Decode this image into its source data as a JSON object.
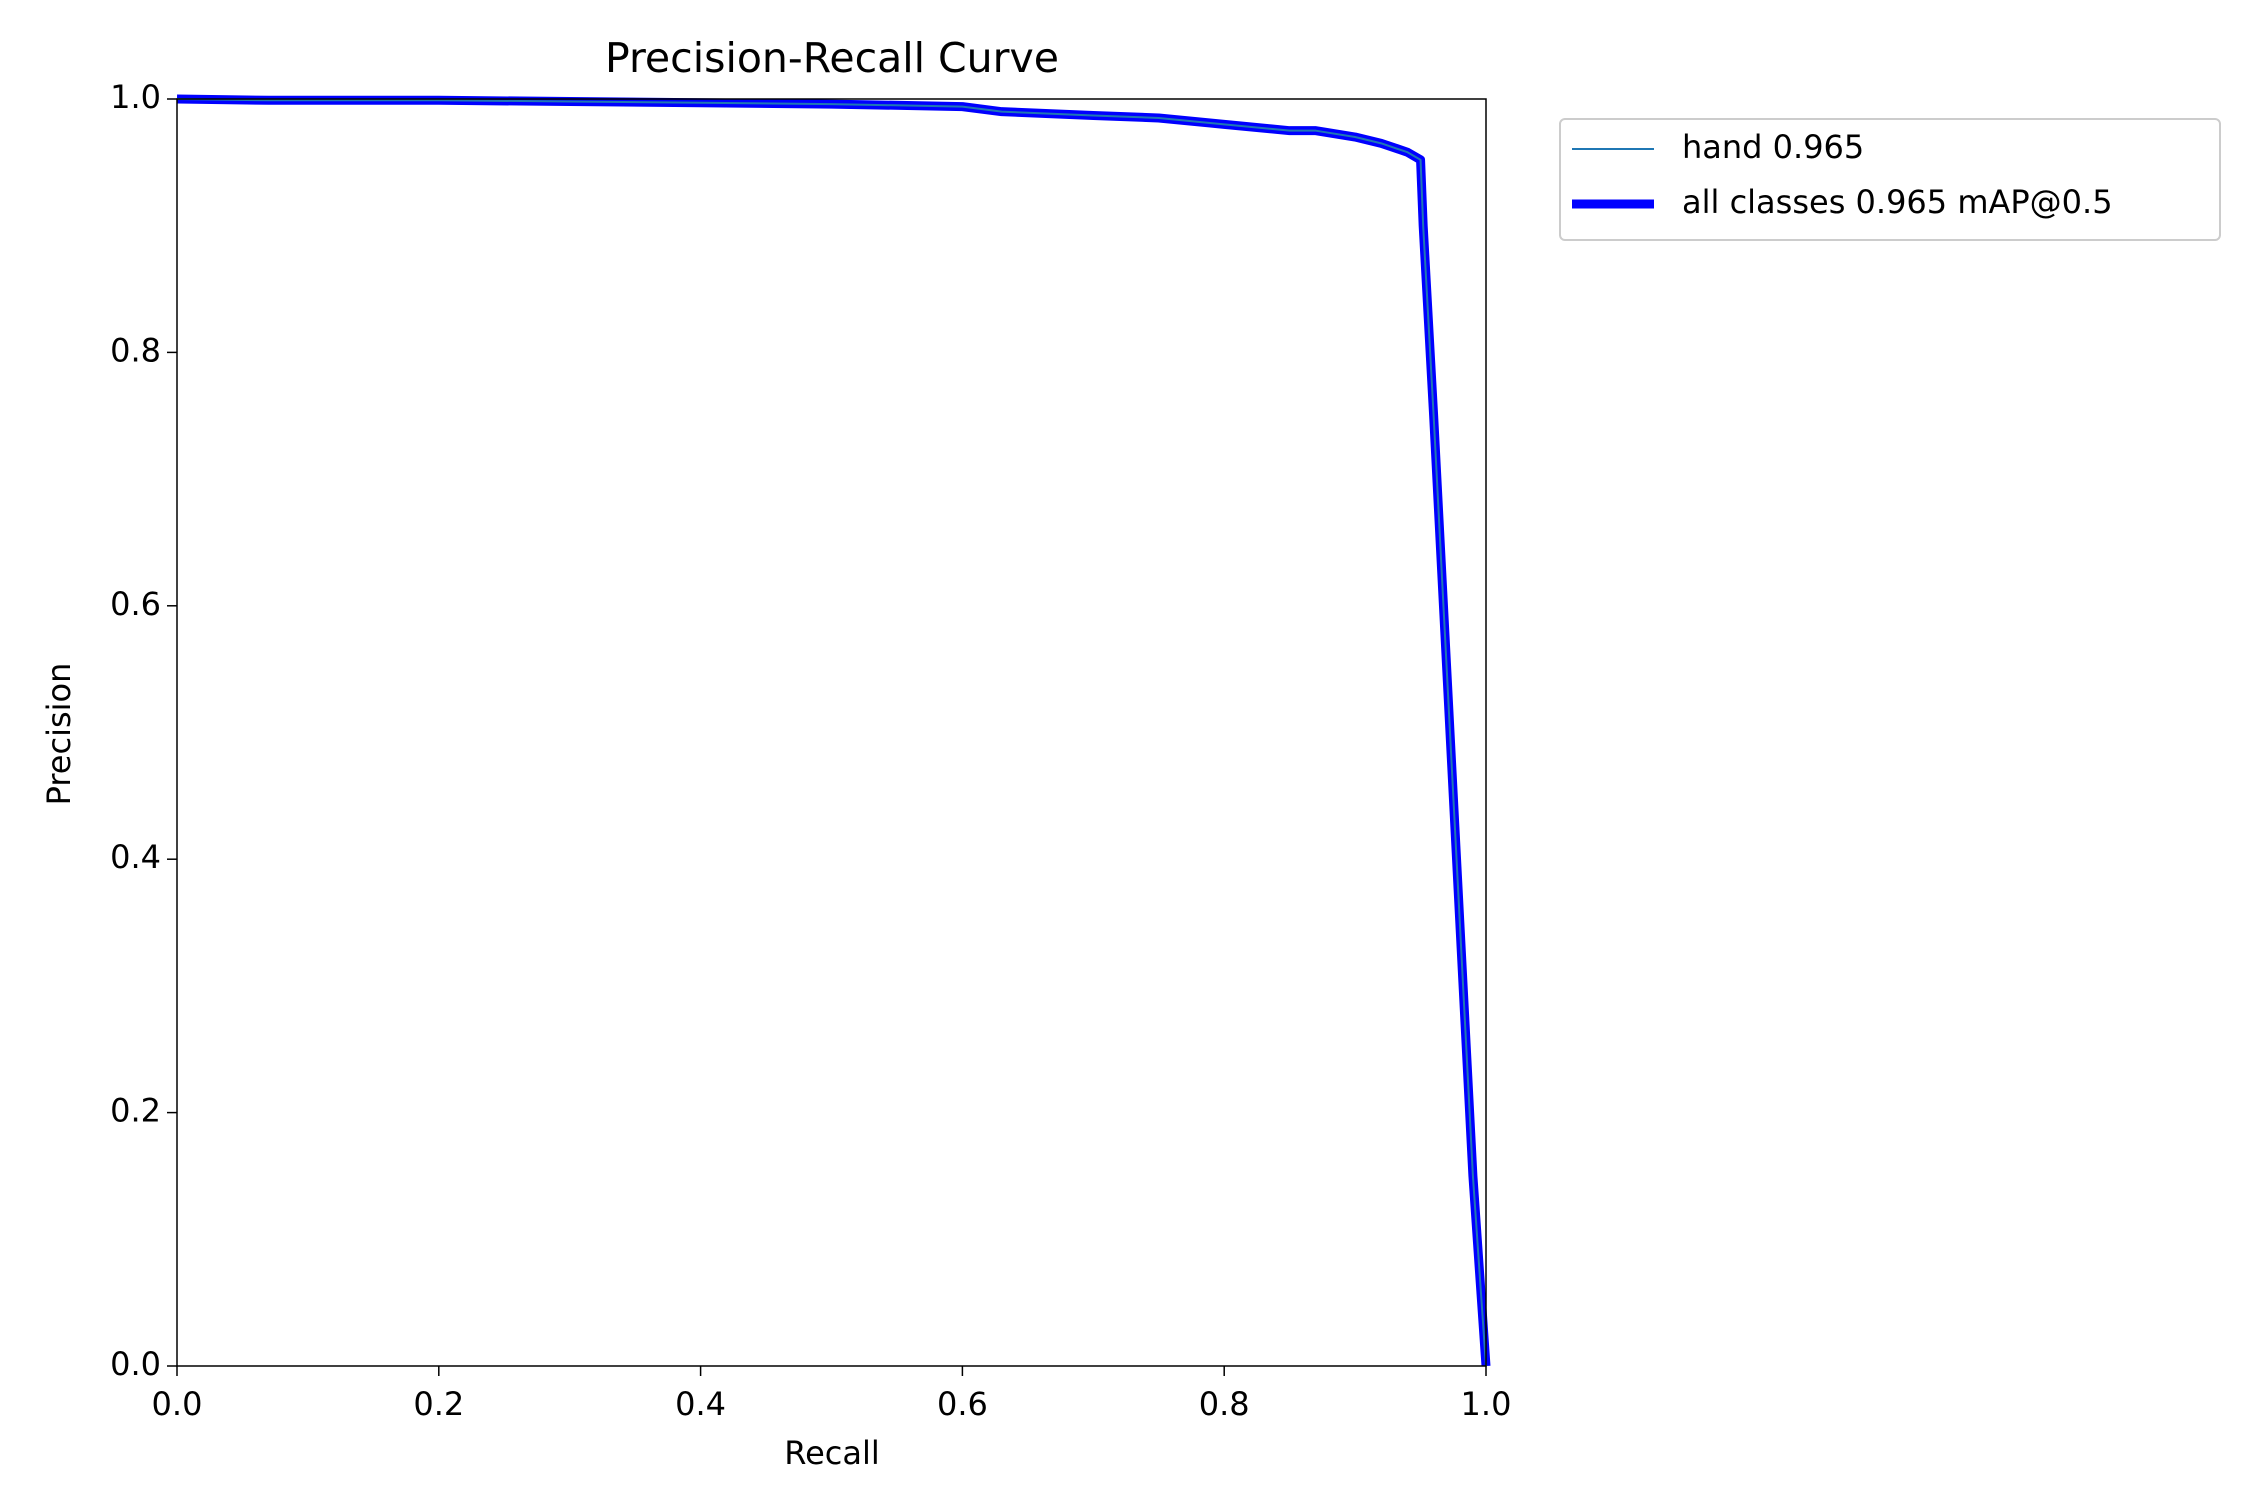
{
  "chart_data": {
    "type": "line",
    "title": "Precision-Recall Curve",
    "x_label": "Recall",
    "y_label": "Precision",
    "x": [
      0,
      0.07,
      0.2,
      0.3,
      0.4,
      0.5,
      0.6,
      0.63,
      0.7,
      0.75,
      0.8,
      0.85,
      0.87,
      0.9,
      0.92,
      0.94,
      0.95,
      0.952,
      0.96,
      0.97,
      0.98,
      0.99,
      1.0
    ],
    "series": [
      {
        "name": "hand 0.965",
        "color": "#1f77b4",
        "values": [
          1.0,
          0.999,
          0.999,
          0.998,
          0.997,
          0.996,
          0.994,
          0.99,
          0.987,
          0.985,
          0.98,
          0.975,
          0.975,
          0.97,
          0.965,
          0.958,
          0.952,
          0.9,
          0.75,
          0.55,
          0.35,
          0.15,
          0.0
        ]
      },
      {
        "name": "all classes 0.965 mAP@0.5",
        "color": "#0000ff",
        "values": [
          1.0,
          0.999,
          0.999,
          0.998,
          0.997,
          0.996,
          0.994,
          0.99,
          0.987,
          0.985,
          0.98,
          0.975,
          0.975,
          0.97,
          0.965,
          0.958,
          0.952,
          0.9,
          0.75,
          0.55,
          0.35,
          0.15,
          0.0
        ]
      }
    ],
    "xlim": [
      0,
      1
    ],
    "ylim": [
      0,
      1
    ],
    "xticks": [
      {
        "value": 0,
        "label": "0.0"
      },
      0.2,
      0.4,
      0.6,
      0.8,
      {
        "value": 1,
        "label": "1.0"
      }
    ],
    "yticks": [
      {
        "value": 0,
        "label": "0.0"
      },
      0.2,
      0.4,
      0.6,
      0.8,
      {
        "value": 1,
        "label": "1.0"
      }
    ],
    "grid": false,
    "legend": "outside-upper-right"
  }
}
